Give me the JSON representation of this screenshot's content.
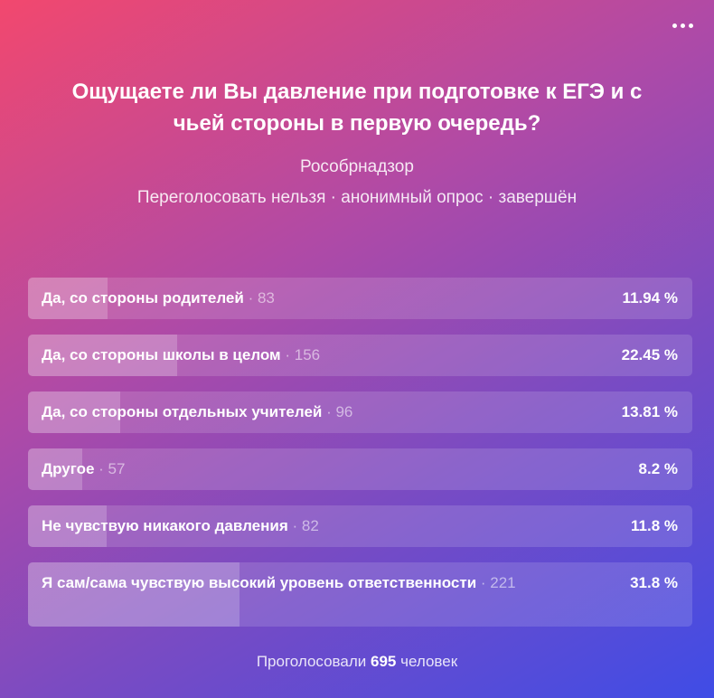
{
  "poll": {
    "question": "Ощущаете ли Вы давление при подготовке к ЕГЭ и с чьей стороны в первую очередь?",
    "author": "Рособрнадзор",
    "meta": "Переголосовать нельзя · анонимный опрос · завершён",
    "options": [
      {
        "label": "Да, со стороны родителей",
        "count": "· 83",
        "percent": "11.94 %",
        "share": 0.1194
      },
      {
        "label": "Да, со стороны школы в целом",
        "count": "· 156",
        "percent": "22.45 %",
        "share": 0.2245
      },
      {
        "label": "Да, со стороны отдельных учителей",
        "count": "· 96",
        "percent": "13.81 %",
        "share": 0.1381
      },
      {
        "label": "Другое",
        "count": "· 57",
        "percent": "8.2 %",
        "share": 0.082
      },
      {
        "label": "Не чувствую никакого давления",
        "count": "· 82",
        "percent": "11.8 %",
        "share": 0.118
      },
      {
        "label": "Я сам/сама чувствую высокий уровень ответственности",
        "count": "· 221",
        "percent": "31.8 %",
        "share": 0.318
      }
    ],
    "footer": {
      "prefix": "Проголосовали",
      "total": "695",
      "suffix": "человек"
    }
  },
  "icons": {
    "more": "more-horizontal-icon"
  }
}
